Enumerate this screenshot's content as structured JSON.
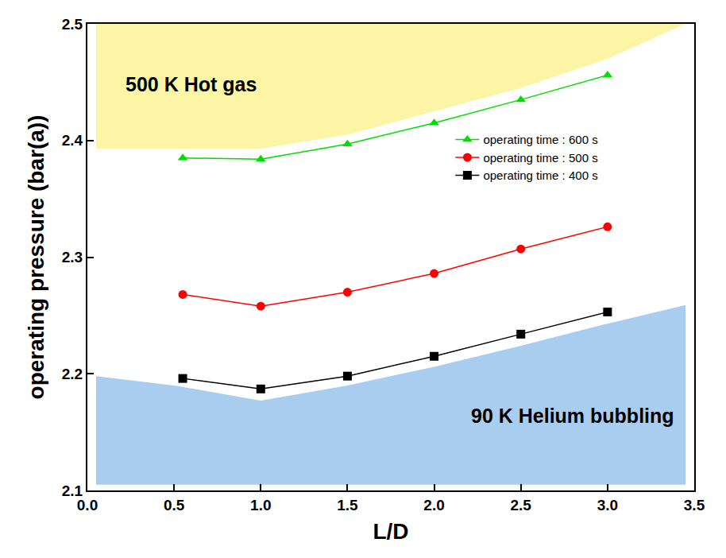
{
  "chart_data": {
    "type": "line",
    "x_label": "L/D",
    "y_label": "operating pressure (bar(a))",
    "x": [
      0.55,
      1.0,
      1.5,
      2.0,
      2.5,
      3.0
    ],
    "series": [
      {
        "name": "operating time : 400 s",
        "color": "#000000",
        "marker": "square",
        "values": [
          2.196,
          2.187,
          2.198,
          2.215,
          2.234,
          2.253
        ]
      },
      {
        "name": "operating time : 500 s",
        "color": "#ff0000",
        "marker": "circle",
        "values": [
          2.268,
          2.258,
          2.27,
          2.286,
          2.307,
          2.326
        ]
      },
      {
        "name": "operating time : 600 s",
        "color": "#00dd00",
        "marker": "triangle",
        "values": [
          2.385,
          2.384,
          2.397,
          2.415,
          2.435,
          2.456
        ]
      }
    ],
    "regions": [
      {
        "name": "500 K Hot gas",
        "color": "#fcf5a5",
        "x": [
          0.05,
          1.0,
          1.5,
          2.0,
          2.5,
          3.0,
          3.45
        ],
        "lower": [
          2.393,
          2.393,
          2.405,
          2.425,
          2.445,
          2.47,
          2.5
        ],
        "upper": [
          2.5,
          2.5,
          2.5,
          2.5,
          2.5,
          2.5,
          2.5
        ]
      },
      {
        "name": "90 K Helium bubbling",
        "color": "#a9cdee",
        "x": [
          0.05,
          0.5,
          1.0,
          1.5,
          2.0,
          2.5,
          3.0,
          3.45
        ],
        "lower": [
          2.105,
          2.105,
          2.105,
          2.105,
          2.105,
          2.105,
          2.105,
          2.105
        ],
        "upper": [
          2.198,
          2.19,
          2.177,
          2.19,
          2.206,
          2.224,
          2.243,
          2.259
        ]
      }
    ],
    "xlim": [
      0,
      3.5
    ],
    "xticks": [
      {
        "value": 0,
        "label": "0.0"
      },
      {
        "value": 0.5,
        "label": "0.5"
      },
      {
        "value": 1,
        "label": "1.0"
      },
      {
        "value": 1.5,
        "label": "1.5"
      },
      {
        "value": 2,
        "label": "2.0"
      },
      {
        "value": 2.5,
        "label": "2.5"
      },
      {
        "value": 3,
        "label": "3.0"
      },
      {
        "value": 3.5,
        "label": "3.5"
      }
    ],
    "ylim": [
      2.1,
      2.5
    ],
    "yticks": [
      2.1,
      2.2,
      2.3,
      2.4,
      2.5
    ],
    "grid": false,
    "legend": "upper right"
  }
}
